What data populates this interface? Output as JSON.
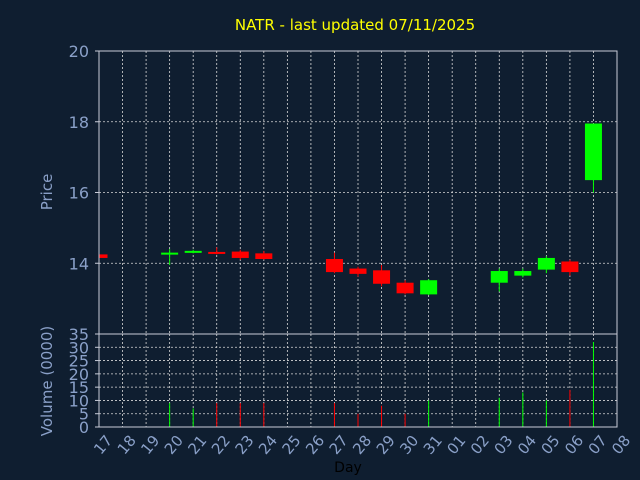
{
  "chart_data": {
    "type": "candlestick",
    "title": "NATR - last updated 07/11/2025",
    "xlabel": "Day",
    "price_panel": {
      "ylabel": "Price",
      "ylim": [
        12.0,
        20.0
      ],
      "yticks": [
        14,
        16,
        18,
        20
      ],
      "grid": true
    },
    "volume_panel": {
      "ylabel": "Volume (0000)",
      "ylim": [
        0,
        35
      ],
      "yticks": [
        0,
        5,
        10,
        15,
        20,
        25,
        30,
        35
      ],
      "grid": true
    },
    "x_tick_labels": [
      "17",
      "18",
      "19",
      "20",
      "21",
      "22",
      "23",
      "24",
      "25",
      "26",
      "27",
      "28",
      "29",
      "30",
      "31",
      "01",
      "02",
      "03",
      "04",
      "05",
      "06",
      "07",
      "08"
    ],
    "up_color": "#00ff00",
    "down_color": "#ff0000",
    "candles": [
      {
        "day": "17",
        "open": 14.25,
        "high": 14.25,
        "low": 14.15,
        "close": 14.15,
        "volume": 0
      },
      {
        "day": "20",
        "open": 14.25,
        "high": 14.4,
        "low": 13.95,
        "close": 14.3,
        "volume": 9
      },
      {
        "day": "21",
        "open": 14.32,
        "high": 14.38,
        "low": 14.28,
        "close": 14.35,
        "volume": 7
      },
      {
        "day": "22",
        "open": 14.32,
        "high": 14.45,
        "low": 14.25,
        "close": 14.28,
        "volume": 9
      },
      {
        "day": "23",
        "open": 14.33,
        "high": 14.38,
        "low": 14.1,
        "close": 14.15,
        "volume": 9
      },
      {
        "day": "24",
        "open": 14.28,
        "high": 14.35,
        "low": 14.1,
        "close": 14.12,
        "volume": 9
      },
      {
        "day": "27",
        "open": 14.12,
        "high": 14.3,
        "low": 13.72,
        "close": 13.75,
        "volume": 9
      },
      {
        "day": "28",
        "open": 13.85,
        "high": 13.9,
        "low": 13.62,
        "close": 13.7,
        "volume": 5
      },
      {
        "day": "29",
        "open": 13.8,
        "high": 13.95,
        "low": 13.35,
        "close": 13.42,
        "volume": 8
      },
      {
        "day": "30",
        "open": 13.45,
        "high": 13.52,
        "low": 13.12,
        "close": 13.15,
        "volume": 5
      },
      {
        "day": "31",
        "open": 13.12,
        "high": 13.55,
        "low": 13.1,
        "close": 13.52,
        "volume": 10
      },
      {
        "day": "03",
        "open": 13.45,
        "high": 13.85,
        "low": 13.2,
        "close": 13.78,
        "volume": 11
      },
      {
        "day": "04",
        "open": 13.65,
        "high": 13.85,
        "low": 13.6,
        "close": 13.78,
        "volume": 13
      },
      {
        "day": "05",
        "open": 13.82,
        "high": 14.2,
        "low": 13.72,
        "close": 14.15,
        "volume": 10
      },
      {
        "day": "06",
        "open": 14.05,
        "high": 14.1,
        "low": 13.65,
        "close": 13.75,
        "volume": 14
      },
      {
        "day": "07",
        "open": 16.35,
        "high": 17.95,
        "low": 16.0,
        "close": 17.95,
        "volume": 32
      }
    ]
  }
}
